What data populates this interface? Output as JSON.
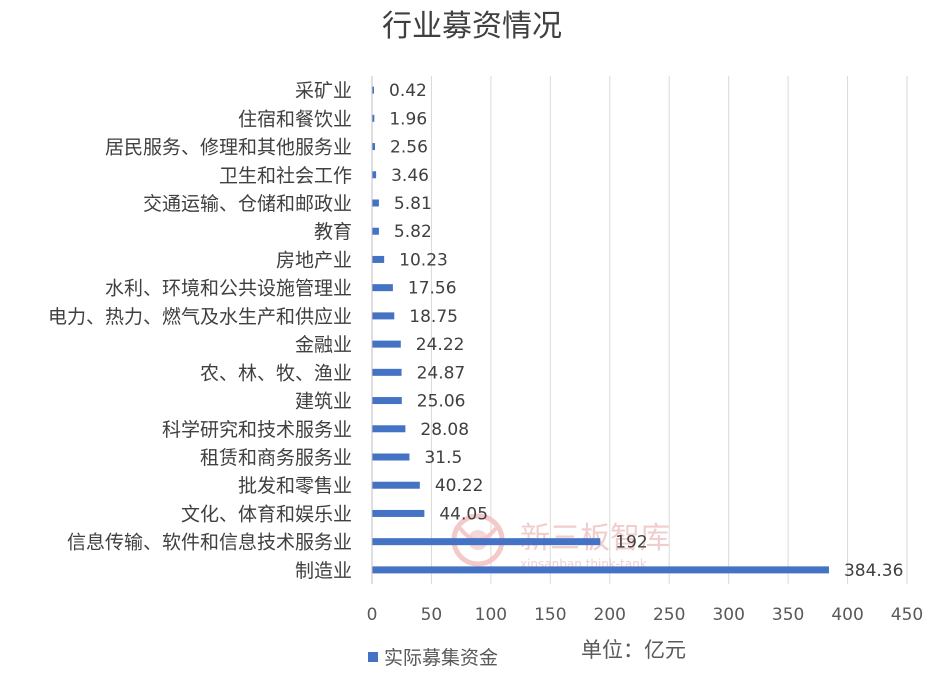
{
  "chart_data": {
    "type": "bar",
    "orientation": "horizontal",
    "title": "行业募资情况",
    "categories": [
      "采矿业",
      "住宿和餐饮业",
      "居民服务、修理和其他服务业",
      "卫生和社会工作",
      "交通运输、仓储和邮政业",
      "教育",
      "房地产业",
      "水利、环境和公共设施管理业",
      "电力、热力、燃气及水生产和供应业",
      "金融业",
      "农、林、牧、渔业",
      "建筑业",
      "科学研究和技术服务业",
      "租赁和商务服务业",
      "批发和零售业",
      "文化、体育和娱乐业",
      "信息传输、软件和信息技术服务业",
      "制造业"
    ],
    "series": [
      {
        "name": "实际募集资金",
        "values": [
          0.42,
          1.96,
          2.56,
          3.46,
          5.81,
          5.82,
          10.23,
          17.56,
          18.75,
          24.22,
          24.87,
          25.06,
          28.08,
          31.5,
          40.22,
          44.05,
          192,
          384.36
        ],
        "value_labels": [
          "0.42",
          "1.96",
          "2.56",
          "3.46",
          "5.81",
          "5.82",
          "10.23",
          "17.56",
          "18.75",
          "24.22",
          "24.87",
          "25.06",
          "28.08",
          "31.5",
          "40.22",
          "44.05",
          "192",
          "384.36"
        ]
      }
    ],
    "xlim": [
      0,
      450
    ],
    "xticks": [
      "0",
      "50",
      "100",
      "150",
      "200",
      "250",
      "300",
      "350",
      "400",
      "450"
    ],
    "grid": true,
    "legend": "bottom-left",
    "unit_label": "单位：亿元",
    "bar_color": "#4472C4"
  },
  "watermark": {
    "text": "新三板智库",
    "subtext": "xinsanban think-tank"
  }
}
